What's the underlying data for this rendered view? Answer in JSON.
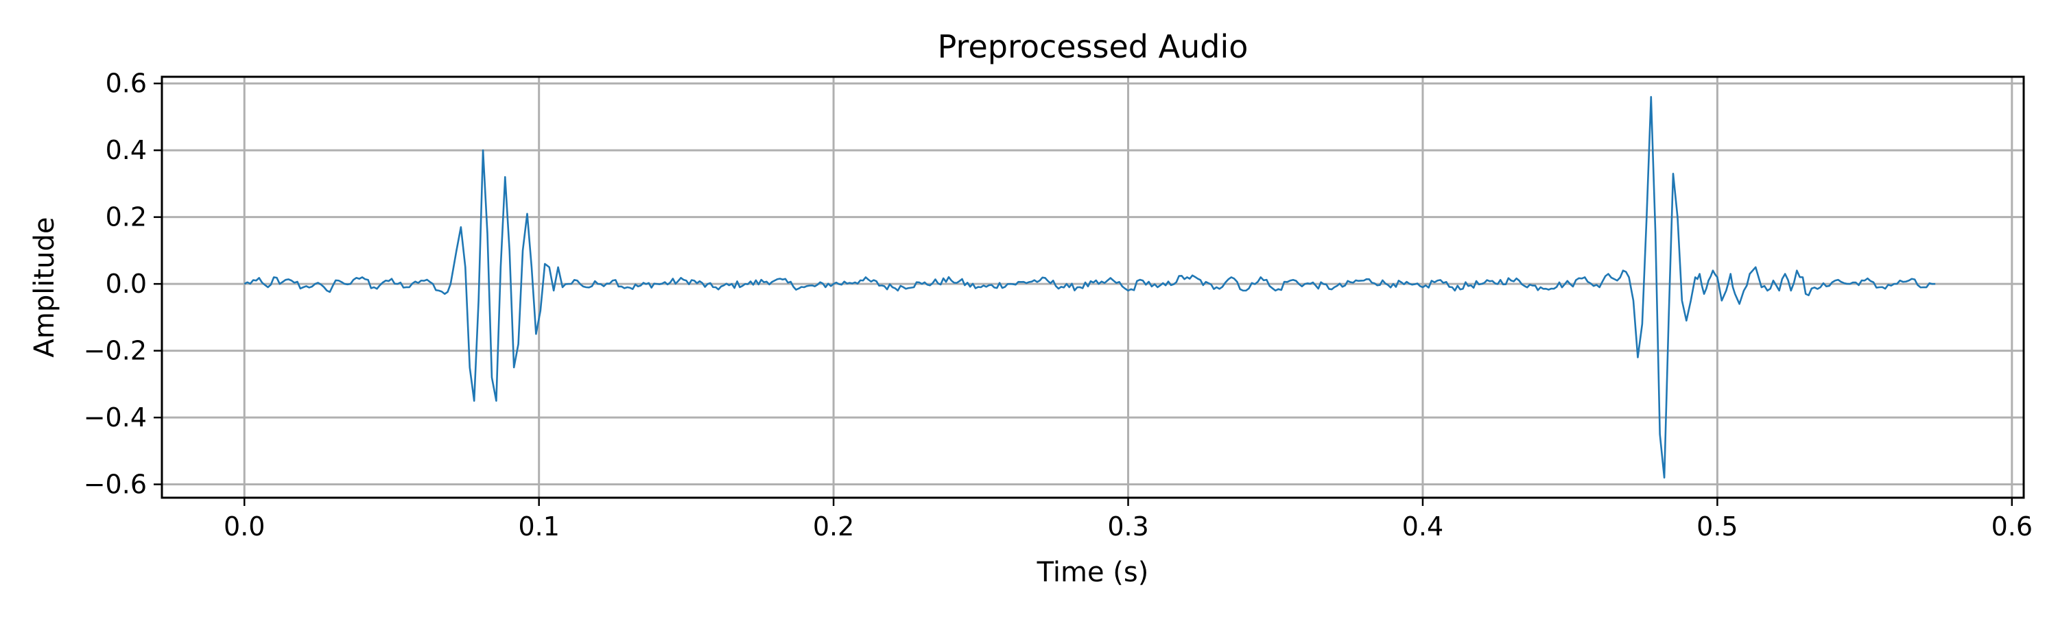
{
  "chart_data": {
    "type": "line",
    "title": "Preprocessed Audio",
    "xlabel": "Time (s)",
    "ylabel": "Amplitude",
    "xlim": [
      -0.028,
      0.604
    ],
    "ylim": [
      -0.64,
      0.62
    ],
    "xticks": [
      0.0,
      0.1,
      0.2,
      0.3,
      0.4,
      0.5,
      0.6
    ],
    "xtick_labels": [
      "0.0",
      "0.1",
      "0.2",
      "0.3",
      "0.4",
      "0.5",
      "0.6"
    ],
    "yticks": [
      -0.6,
      -0.4,
      -0.2,
      0.0,
      0.2,
      0.4,
      0.6
    ],
    "ytick_labels": [
      "−0.6",
      "−0.4",
      "−0.2",
      "0.0",
      "0.2",
      "0.4",
      "0.6"
    ],
    "grid": true,
    "legend": "none",
    "series": [
      {
        "color": "#1f77b4",
        "x": [
          0.0,
          0.004,
          0.008,
          0.01,
          0.012,
          0.016,
          0.02,
          0.024,
          0.028,
          0.032,
          0.036,
          0.04,
          0.044,
          0.048,
          0.052,
          0.056,
          0.06,
          0.064,
          0.066,
          0.068,
          0.07,
          0.072,
          0.0735,
          0.075,
          0.0765,
          0.078,
          0.0795,
          0.081,
          0.0825,
          0.084,
          0.0855,
          0.087,
          0.0885,
          0.09,
          0.0915,
          0.093,
          0.0945,
          0.096,
          0.0975,
          0.099,
          0.1005,
          0.102,
          0.1035,
          0.105,
          0.1065,
          0.108,
          0.11,
          0.113,
          0.116,
          0.12,
          0.125,
          0.13,
          0.14,
          0.15,
          0.16,
          0.17,
          0.18,
          0.19,
          0.2,
          0.21,
          0.22,
          0.23,
          0.24,
          0.25,
          0.26,
          0.27,
          0.28,
          0.29,
          0.295,
          0.3,
          0.305,
          0.31,
          0.32,
          0.33,
          0.335,
          0.34,
          0.345,
          0.35,
          0.355,
          0.36,
          0.37,
          0.38,
          0.39,
          0.4,
          0.405,
          0.41,
          0.42,
          0.43,
          0.44,
          0.45,
          0.455,
          0.46,
          0.463,
          0.466,
          0.468,
          0.47,
          0.4715,
          0.473,
          0.4745,
          0.476,
          0.4775,
          0.479,
          0.4805,
          0.482,
          0.4835,
          0.485,
          0.4865,
          0.488,
          0.4895,
          0.491,
          0.4925,
          0.494,
          0.4955,
          0.497,
          0.4985,
          0.5,
          0.5015,
          0.503,
          0.5045,
          0.506,
          0.5075,
          0.509,
          0.511,
          0.513,
          0.515,
          0.517,
          0.519,
          0.521,
          0.523,
          0.525,
          0.527,
          0.529,
          0.53,
          0.535,
          0.54,
          0.545,
          0.55,
          0.555,
          0.56,
          0.565,
          0.57,
          0.574
        ],
        "y": [
          0.0,
          0.01,
          -0.01,
          0.02,
          0.0,
          0.01,
          -0.01,
          0.0,
          -0.02,
          0.01,
          0.0,
          0.02,
          -0.01,
          0.01,
          0.0,
          -0.01,
          0.01,
          0.0,
          -0.02,
          -0.03,
          0.0,
          0.1,
          0.17,
          0.05,
          -0.25,
          -0.35,
          -0.05,
          0.4,
          0.15,
          -0.28,
          -0.35,
          0.05,
          0.32,
          0.1,
          -0.25,
          -0.18,
          0.1,
          0.21,
          0.05,
          -0.15,
          -0.08,
          0.06,
          0.05,
          -0.02,
          0.05,
          -0.01,
          0.0,
          0.01,
          -0.01,
          0.0,
          0.01,
          -0.01,
          0.0,
          0.01,
          -0.01,
          0.0,
          0.01,
          -0.01,
          0.0,
          0.01,
          -0.01,
          0.0,
          0.01,
          -0.01,
          0.0,
          0.01,
          -0.01,
          0.0,
          0.01,
          -0.02,
          0.01,
          -0.01,
          0.02,
          -0.01,
          0.02,
          -0.02,
          0.02,
          -0.02,
          0.01,
          0.0,
          -0.01,
          0.01,
          0.0,
          -0.01,
          0.01,
          -0.01,
          0.0,
          0.01,
          -0.01,
          0.0,
          0.02,
          -0.01,
          0.03,
          0.01,
          0.04,
          0.02,
          -0.05,
          -0.22,
          -0.12,
          0.2,
          0.56,
          0.15,
          -0.45,
          -0.58,
          -0.1,
          0.33,
          0.2,
          -0.05,
          -0.11,
          -0.05,
          0.02,
          0.03,
          -0.03,
          0.01,
          0.04,
          0.02,
          -0.05,
          -0.02,
          0.03,
          -0.03,
          -0.06,
          -0.02,
          0.03,
          0.05,
          -0.01,
          -0.02,
          0.01,
          -0.02,
          0.03,
          -0.02,
          0.04,
          0.02,
          -0.03,
          -0.01,
          0.01,
          0.0,
          0.01,
          -0.01,
          0.0,
          0.01,
          -0.01,
          0.0
        ]
      }
    ]
  }
}
